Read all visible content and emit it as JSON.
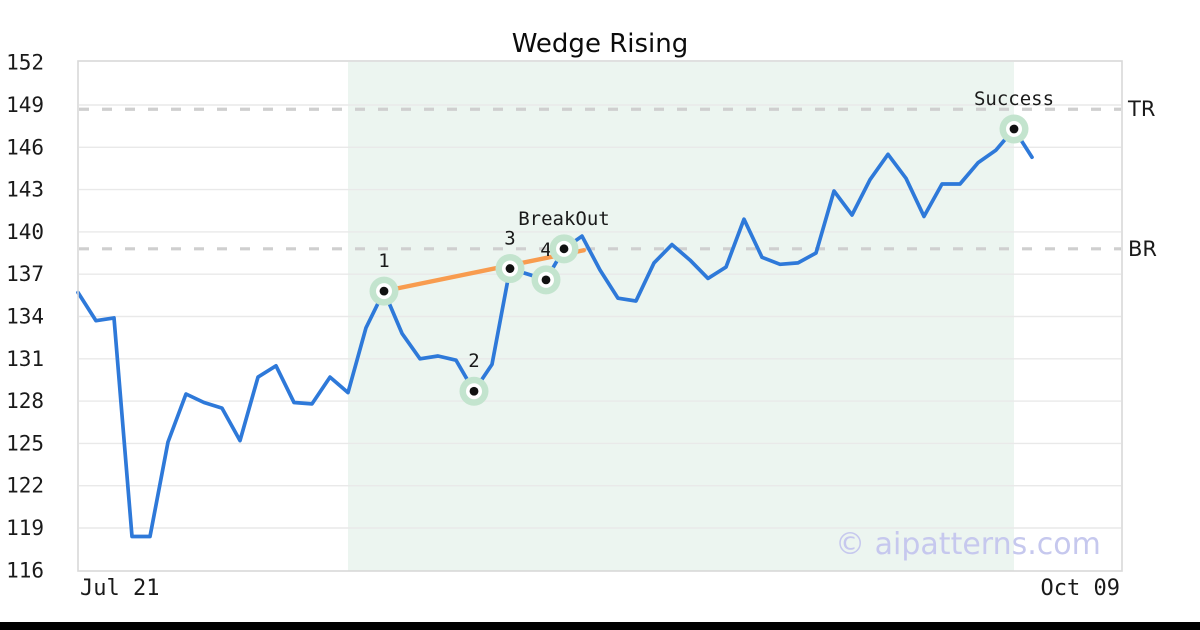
{
  "title": "Wedge Rising",
  "watermark": "© aipatterns.com",
  "chart_data": {
    "type": "line",
    "title": "Wedge Rising",
    "x_tick_labels": [
      "Jul 21",
      "Oct 09"
    ],
    "y_ticks": [
      152,
      149,
      146,
      143,
      140,
      137,
      134,
      131,
      128,
      125,
      122,
      119,
      116
    ],
    "ylim": [
      116,
      152
    ],
    "grid": "horizontal-only",
    "values": [
      135.7,
      133.7,
      133.9,
      118.4,
      118.4,
      125.1,
      128.5,
      127.9,
      127.5,
      125.2,
      129.7,
      130.5,
      127.9,
      127.8,
      129.7,
      128.6,
      133.2,
      135.8,
      132.8,
      131.0,
      131.2,
      130.9,
      128.7,
      130.6,
      137.4,
      137.0,
      136.6,
      138.8,
      139.7,
      137.3,
      135.3,
      135.1,
      137.8,
      139.1,
      138.0,
      136.7,
      137.5,
      140.9,
      138.2,
      137.7,
      137.8,
      138.5,
      142.9,
      141.2,
      143.7,
      145.5,
      143.8,
      141.1,
      143.4,
      143.4,
      144.9,
      145.8,
      147.3,
      145.3
    ],
    "pattern_points": [
      {
        "label": "1",
        "index": 17,
        "value": 135.8
      },
      {
        "label": "2",
        "index": 22,
        "value": 128.7
      },
      {
        "label": "3",
        "index": 24,
        "value": 137.4
      },
      {
        "label": "4",
        "index": 26,
        "value": 136.6
      },
      {
        "label": "BreakOut",
        "index": 27,
        "value": 138.8
      },
      {
        "label": "Success",
        "index": 52,
        "value": 147.3
      }
    ],
    "levels": [
      {
        "label": "TR",
        "value": 148.7
      },
      {
        "label": "BR",
        "value": 138.8
      }
    ],
    "trendline": {
      "from_index": 17,
      "from_value": 135.8,
      "to_index": 28.1,
      "to_value": 138.7
    },
    "highlight_region": {
      "from_index": 15,
      "to_index": 52
    },
    "colors": {
      "price_line": "#2E79D9",
      "trendline": "#F89C4F",
      "marker_halo": "#C3E4CE",
      "marker_ring": "#FFFFFF",
      "marker_dot": "#111111",
      "highlight": "#ECF5F0",
      "level_dash": "#CFCFCF",
      "gridline": "#E9E9E9",
      "plot_border": "#D8D8D8",
      "text": "#1A1A1A",
      "watermark": "#C6C8EE",
      "bottom_bar": "#000000"
    }
  }
}
